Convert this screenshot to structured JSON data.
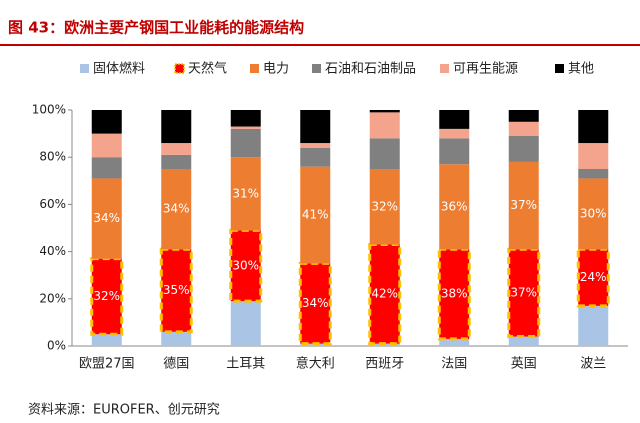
{
  "chart_data": {
    "type": "stacked_bar_percent",
    "title": "图 43：欧洲主要产钢国工业能耗的能源结构",
    "source": "资料来源：EUROFER、创元研究",
    "categories": [
      "欧盟27国",
      "德国",
      "土耳其",
      "意大利",
      "西班牙",
      "法国",
      "英国",
      "波兰"
    ],
    "series": [
      {
        "name": "固体燃料",
        "color": "#a9c4e4",
        "values": [
          5,
          6,
          19,
          1,
          1,
          3,
          4,
          17
        ]
      },
      {
        "name": "天然气",
        "color": "#ff0000",
        "edgecolor": "#ffc000",
        "values": [
          32,
          35,
          30,
          34,
          42,
          38,
          37,
          24
        ],
        "value_labels": [
          "32%",
          "35%",
          "30%",
          "34%",
          "42%",
          "38%",
          "37%",
          "24%"
        ]
      },
      {
        "name": "电力",
        "color": "#ed7d31",
        "values": [
          34,
          34,
          31,
          41,
          32,
          36,
          37,
          30
        ],
        "value_labels": [
          "34%",
          "34%",
          "31%",
          "41%",
          "32%",
          "36%",
          "37%",
          "30%"
        ]
      },
      {
        "name": "石油和石油制品",
        "color": "#808080",
        "values": [
          9,
          6,
          12,
          8,
          13,
          11,
          11,
          4
        ]
      },
      {
        "name": "可再生能源",
        "color": "#f4a38c",
        "values": [
          10,
          5,
          1,
          2,
          11,
          4,
          6,
          11
        ]
      },
      {
        "name": "其他",
        "color": "#000000",
        "values": [
          10,
          14,
          7,
          14,
          1,
          8,
          5,
          14
        ]
      }
    ],
    "ylim": [
      0,
      100
    ],
    "yticks": [
      {
        "value": 0,
        "label": "0%"
      },
      {
        "value": 20,
        "label": "20%"
      },
      {
        "value": 40,
        "label": "40%"
      },
      {
        "value": 60,
        "label": "60%"
      },
      {
        "value": 80,
        "label": "80%"
      },
      {
        "value": 100,
        "label": "100%"
      }
    ]
  }
}
